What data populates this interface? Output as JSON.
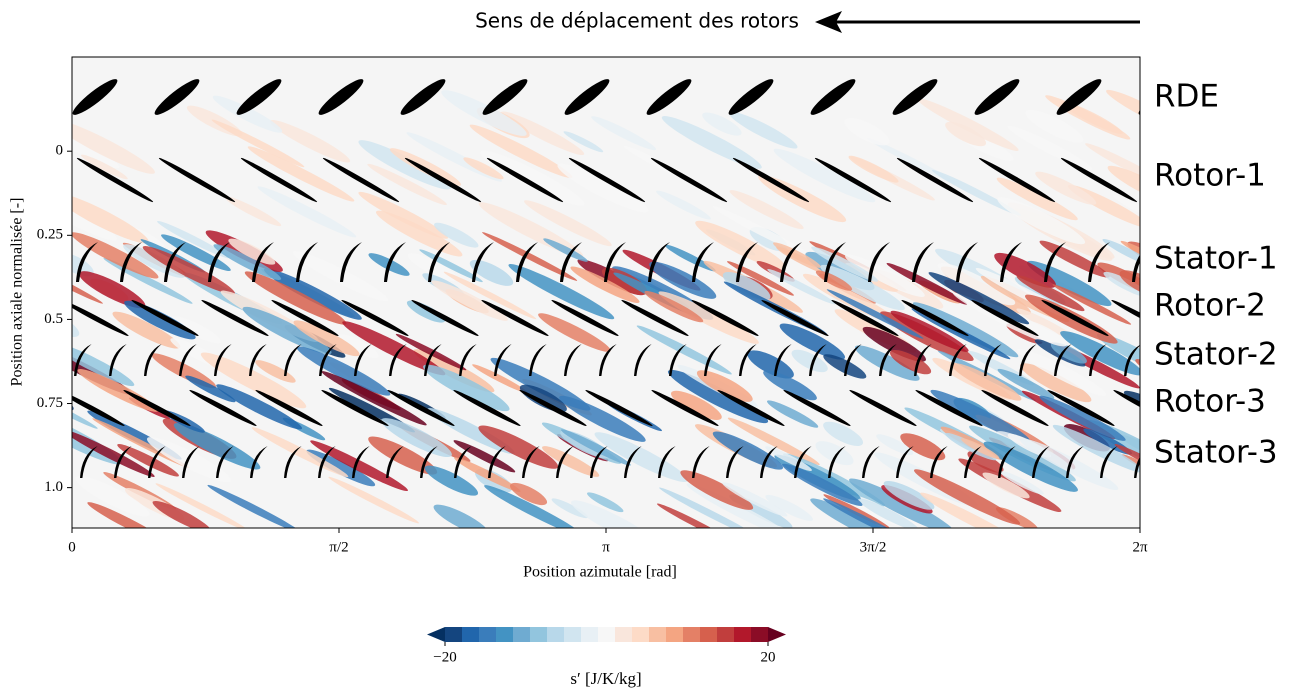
{
  "chart_data": {
    "type": "contour",
    "header": "Sens de déplacement des rotors",
    "xlabel": "Position azimutale [rad]",
    "ylabel": "Position axiale normalisée [-]",
    "xlim": [
      0,
      6.2832
    ],
    "xticks": [
      0,
      {
        "value": 1.5708,
        "label": "π/2"
      },
      {
        "value": 3.1416,
        "label": "π"
      },
      {
        "value": 4.7124,
        "label": "3π/2"
      },
      {
        "value": 6.2832,
        "label": "2π"
      }
    ],
    "ylim": [
      -0.28,
      1.12
    ],
    "y_inverted": true,
    "yticks": [
      0,
      0.25,
      0.5,
      0.75,
      {
        "value": 1,
        "label": "1.0"
      }
    ],
    "rows": [
      "RDE",
      "Rotor-1",
      "Stator-1",
      "Rotor-2",
      "Stator-2",
      "Rotor-3",
      "Stator-3"
    ],
    "colorbar": {
      "label": "s′ [J/K/kg]",
      "lim": [
        -20,
        20
      ],
      "ticks": [
        {
          "value": -20,
          "label": "−20"
        },
        20
      ],
      "colors": [
        "#053061",
        "#14457f",
        "#2166ac",
        "#3a7dbb",
        "#4393c3",
        "#6fabd1",
        "#92c5de",
        "#b8d8ea",
        "#d1e5f0",
        "#e8f0f5",
        "#f7f7f7",
        "#f9e6dc",
        "#fddbc7",
        "#f8bfa2",
        "#f4a582",
        "#e48066",
        "#d6604d",
        "#c13e3d",
        "#b2182b",
        "#8b0c26",
        "#67001f"
      ]
    }
  }
}
